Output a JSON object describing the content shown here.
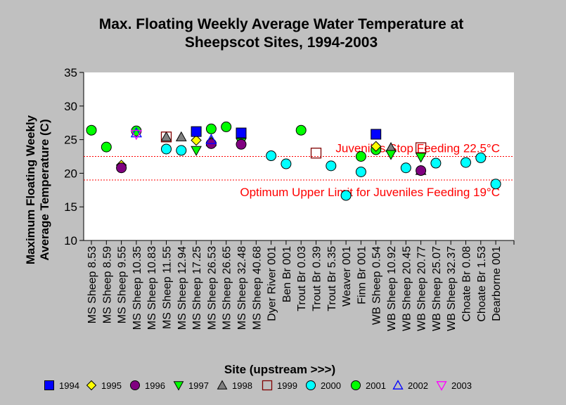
{
  "chart_data": {
    "type": "scatter",
    "title_lines": [
      "Max. Floating Weekly Average Water Temperature at",
      "Sheepscot Sites, 1994-2003"
    ],
    "xlabel": "Site (upstream >>>)",
    "ylabel_lines": [
      "Maximum Floating Weekly",
      "Average Temperature (C)"
    ],
    "ylim": [
      10,
      35
    ],
    "yticks": [
      10,
      15,
      20,
      25,
      30,
      35
    ],
    "grid": false,
    "legend_position": "bottom",
    "categories": [
      "MS Sheep 8.53",
      "MS Sheep 8.59",
      "MS Sheep 9.55",
      "MS Sheep 10.35",
      "MS Sheep 10.83",
      "MS Sheep 11.55",
      "MS Sheep 12.94",
      "MS Sheep 17.25",
      "MS Sheep 26.53",
      "MS Sheep 26.65",
      "MS Sheep 32.48",
      "MS Sheep 40.68",
      "Dyer River 001",
      "Ben Br 001",
      "Trout Br 0.03",
      "Trout Br 0.39",
      "Trout Br 5.35",
      "Weaver 001",
      "Finn Br 001",
      "WB Sheep 0.54",
      "WB Sheep 10.92",
      "WB Sheep 20.45",
      "WB Sheep 20.77",
      "WB Sheep 25.07",
      "WB Sheep 32.37",
      "Choate Br 0.08",
      "Choate Br 1.53",
      "Dearborne 001"
    ],
    "reference_lines": [
      {
        "label": "Juveniles Stop Feeding 22.5°C",
        "y": 22.5,
        "color": "#ff0000"
      },
      {
        "label": "Optimum Upper Limit for Juveniles Feeding 19°C",
        "y": 19,
        "color": "#ff0000"
      }
    ],
    "series": [
      {
        "name": "1994",
        "marker": "square",
        "color": "#0000ff",
        "points": [
          [
            7,
            26.2
          ],
          [
            10,
            26.0
          ],
          [
            19,
            25.8
          ]
        ]
      },
      {
        "name": "1995",
        "marker": "diamond",
        "color": "#ffff00",
        "points": [
          [
            2,
            21.2
          ],
          [
            7,
            24.9
          ],
          [
            8,
            24.6
          ],
          [
            19,
            24.0
          ]
        ]
      },
      {
        "name": "1996",
        "marker": "circle",
        "color": "#800080",
        "points": [
          [
            2,
            20.8
          ],
          [
            8,
            24.4
          ],
          [
            10,
            24.3
          ],
          [
            22,
            20.4
          ]
        ]
      },
      {
        "name": "1997",
        "marker": "triangle-down",
        "color": "#00ff00",
        "points": [
          [
            7,
            23.4
          ],
          [
            10,
            24.6
          ],
          [
            20,
            22.8
          ],
          [
            22,
            22.4
          ]
        ]
      },
      {
        "name": "1998",
        "marker": "triangle-up",
        "color": "#808080",
        "points": [
          [
            5,
            25.4
          ],
          [
            6,
            25.4
          ],
          [
            8,
            24.7
          ],
          [
            20,
            23.8
          ],
          [
            22,
            20.4
          ]
        ]
      },
      {
        "name": "1999",
        "marker": "square-open",
        "color": "#800000",
        "points": [
          [
            5,
            25.4
          ],
          [
            15,
            23.0
          ],
          [
            22,
            23.8
          ]
        ]
      },
      {
        "name": "2000",
        "marker": "circle",
        "color": "#00ffff",
        "points": [
          [
            5,
            23.6
          ],
          [
            6,
            23.4
          ],
          [
            12,
            22.6
          ],
          [
            13,
            21.4
          ],
          [
            16,
            21.1
          ],
          [
            17,
            16.7
          ],
          [
            18,
            20.2
          ],
          [
            21,
            20.8
          ],
          [
            23,
            21.5
          ],
          [
            25,
            21.6
          ],
          [
            26,
            22.3
          ],
          [
            27,
            18.4
          ]
        ]
      },
      {
        "name": "2001",
        "marker": "circle",
        "color": "#00ff00",
        "points": [
          [
            0,
            26.4
          ],
          [
            1,
            23.9
          ],
          [
            3,
            26.3
          ],
          [
            8,
            26.6
          ],
          [
            9,
            26.9
          ],
          [
            14,
            26.4
          ],
          [
            18,
            22.5
          ],
          [
            19,
            23.5
          ]
        ]
      },
      {
        "name": "2002",
        "marker": "triangle-up-open",
        "color": "#0000ff",
        "points": [
          [
            3,
            26.0
          ],
          [
            8,
            25.0
          ]
        ]
      },
      {
        "name": "2003",
        "marker": "triangle-down-open",
        "color": "#ff00ff",
        "points": [
          [
            3,
            25.8
          ]
        ]
      }
    ]
  }
}
